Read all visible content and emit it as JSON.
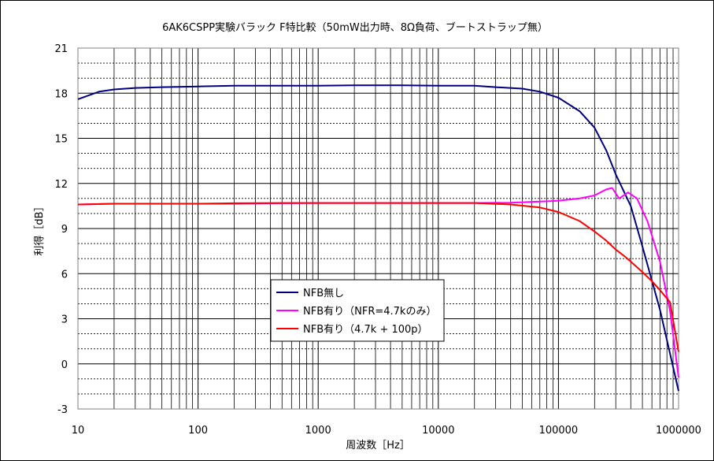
{
  "chart_data": {
    "type": "line",
    "title": "6AK6CSPP実験バラック F特比較（50mW出力時、8Ω負荷、ブートストラップ無）",
    "xlabel": "周波数［Hz］",
    "ylabel": "利得［dB］",
    "x_scale": "log",
    "xlim": [
      10,
      1000000
    ],
    "ylim": [
      -3,
      21
    ],
    "x_ticks": [
      "10",
      "100",
      "1000",
      "10000",
      "100000",
      "1000000"
    ],
    "y_ticks": [
      "-3",
      "0",
      "3",
      "6",
      "9",
      "12",
      "15",
      "18",
      "21"
    ],
    "grid": true,
    "legend_position": "lower-center",
    "series": [
      {
        "name": "NFB無し",
        "color": "#000080",
        "x": [
          10,
          15,
          20,
          30,
          50,
          100,
          200,
          500,
          1000,
          2000,
          5000,
          10000,
          20000,
          30000,
          50000,
          70000,
          100000,
          150000,
          200000,
          250000,
          300000,
          400000,
          500000,
          700000,
          1000000
        ],
        "y": [
          17.6,
          18.1,
          18.25,
          18.35,
          18.4,
          18.45,
          18.5,
          18.5,
          18.5,
          18.52,
          18.52,
          18.5,
          18.5,
          18.4,
          18.3,
          18.1,
          17.7,
          16.8,
          15.7,
          14.2,
          12.6,
          10.5,
          7.8,
          3.6,
          -1.8
        ]
      },
      {
        "name": "NFB有り（NFR=4.7kのみ）",
        "color": "#ff00ff",
        "x": [
          10,
          20,
          50,
          100,
          200,
          500,
          1000,
          2000,
          5000,
          10000,
          20000,
          40000,
          70000,
          100000,
          150000,
          200000,
          250000,
          280000,
          320000,
          380000,
          450000,
          550000,
          700000,
          850000,
          1000000
        ],
        "y": [
          10.6,
          10.65,
          10.65,
          10.65,
          10.65,
          10.68,
          10.7,
          10.7,
          10.7,
          10.7,
          10.7,
          10.72,
          10.8,
          10.85,
          11.0,
          11.2,
          11.6,
          11.7,
          11.0,
          11.4,
          11.0,
          9.5,
          6.8,
          3.5,
          -0.9
        ]
      },
      {
        "name": "NFB有り（4.7k + 100p）",
        "color": "#ff0000",
        "x": [
          10,
          20,
          50,
          100,
          200,
          500,
          1000,
          2000,
          5000,
          10000,
          20000,
          40000,
          70000,
          100000,
          150000,
          200000,
          250000,
          300000,
          350000,
          400000,
          500000,
          600000,
          700000,
          850000,
          1000000
        ],
        "y": [
          10.6,
          10.65,
          10.65,
          10.65,
          10.68,
          10.7,
          10.7,
          10.7,
          10.7,
          10.7,
          10.7,
          10.6,
          10.4,
          10.1,
          9.5,
          8.8,
          8.2,
          7.6,
          7.2,
          6.8,
          6.1,
          5.5,
          4.9,
          4.1,
          0.8
        ]
      }
    ]
  }
}
